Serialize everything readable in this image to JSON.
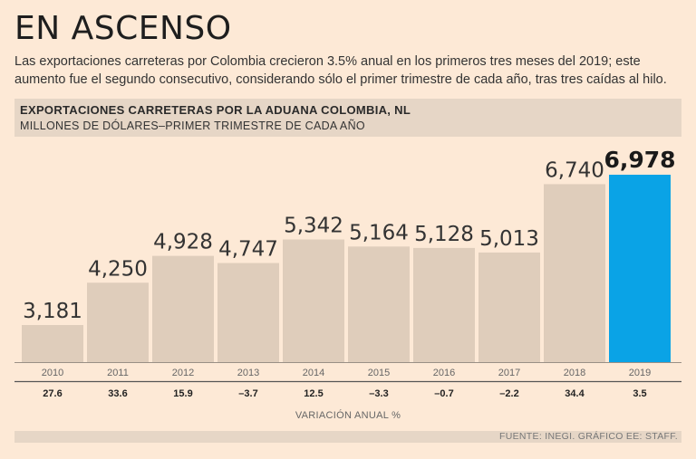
{
  "header": {
    "title": "EN ASCENSO",
    "subtitle": "Las exportaciones carreteras por Colombia crecieron 3.5% anual en los primeros tres meses del 2019; este aumento fue el segundo consecutivo, considerando sólo el primer trimestre de cada año, tras tres caídas al hilo."
  },
  "chart_data": {
    "type": "bar",
    "title": "EXPORTACIONES CARRETERAS POR LA ADUANA COLOMBIA, NL",
    "subtitle": "MILLONES DE DÓLARES–PRIMER TRIMESTRE DE CADA AÑO",
    "categories": [
      "2010",
      "2011",
      "2012",
      "2013",
      "2014",
      "2015",
      "2016",
      "2017",
      "2018",
      "2019"
    ],
    "values": [
      3181,
      4250,
      4928,
      4747,
      5342,
      5164,
      5128,
      5013,
      6740,
      6978
    ],
    "value_labels": [
      "3,181",
      "4,250",
      "4,928",
      "4,747",
      "5,342",
      "5,164",
      "5,128",
      "5,013",
      "6,740",
      "6,978"
    ],
    "annual_variation": [
      "27.6",
      "33.6",
      "15.9",
      "–3.7",
      "12.5",
      "–3.3",
      "–0.7",
      "–2.2",
      "34.4",
      "3.5"
    ],
    "variation_label": "VARIACIÓN ANUAL %",
    "ylim": [
      0,
      7000
    ],
    "bar_color": "#dfcdbb",
    "highlight_color": "#0aa3e6",
    "highlight_index": 9
  },
  "footer": {
    "source": "FUENTE: INEGI. GRÁFICO EE: STAFF."
  }
}
